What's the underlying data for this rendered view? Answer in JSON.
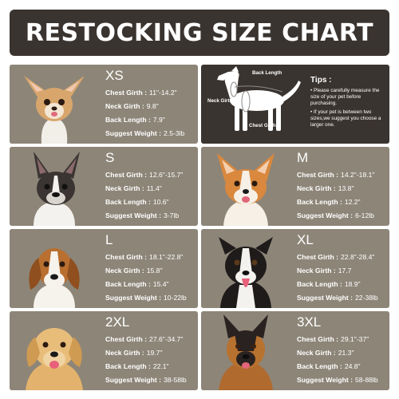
{
  "title": "RESTOCKING SIZE CHART",
  "labels": {
    "chest": "Chest Girth :",
    "neck": "Neck Girth :",
    "back": "Back Length :",
    "weight": "Suggest Weight :"
  },
  "tips": {
    "heading": "Tips :",
    "items": [
      "• Please carefully measure the size of your pet before purchasing.",
      "• If your pet is between two sizes,we suggest you choose a larger one."
    ],
    "diagram": {
      "back_length": "Back Length",
      "neck_girth": "Neck Girth",
      "chest_girth": "Chest Girth"
    }
  },
  "sizes": [
    {
      "size": "XS",
      "chest": "11\"-14.2\"",
      "neck": "9.8\"",
      "back": "7.9\"",
      "weight": "2.5-3lb",
      "dog": "chihuahua"
    },
    {
      "size": "S",
      "chest": "12.6\"-15.7\"",
      "neck": "11.4\"",
      "back": "10.6\"",
      "weight": "3-7lb",
      "dog": "french-bulldog"
    },
    {
      "size": "M",
      "chest": "14.2\"-18.1\"",
      "neck": "13.8\"",
      "back": "12.2\"",
      "weight": "6-12lb",
      "dog": "corgi"
    },
    {
      "size": "L",
      "chest": "18.1\"-22.8\"",
      "neck": "15.8\"",
      "back": "15.4\"",
      "weight": "10-22lb",
      "dog": "beagle"
    },
    {
      "size": "XL",
      "chest": "22.8\"-28.4\"",
      "neck": "17.7",
      "back": "18.9\"",
      "weight": "22-38lb",
      "dog": "border-collie"
    },
    {
      "size": "2XL",
      "chest": "27.6\"-34.7\"",
      "neck": "19.7\"",
      "back": "22.1\"",
      "weight": "38-58lb",
      "dog": "golden-retriever"
    },
    {
      "size": "3XL",
      "chest": "29.1\"-37\"",
      "neck": "21.3\"",
      "back": "24.8\"",
      "weight": "58-88lb",
      "dog": "german-shepherd"
    }
  ],
  "colors": {
    "header_bg": "#3a3430",
    "card_bg": "#8d8578",
    "text": "#ffffff"
  }
}
